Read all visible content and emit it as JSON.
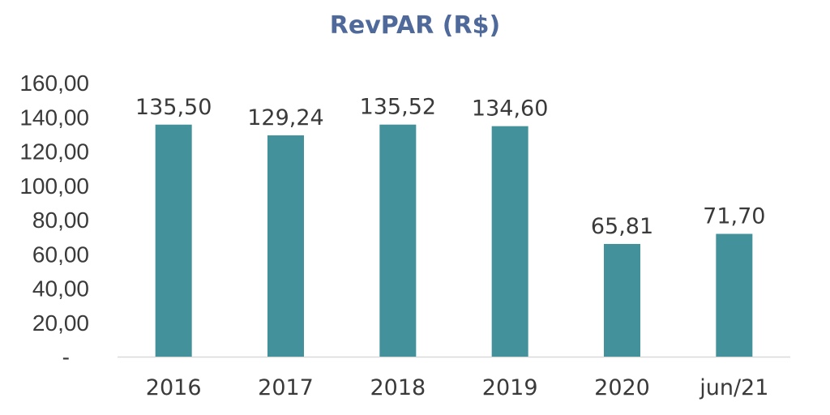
{
  "chart_data": {
    "type": "bar",
    "title": "RevPAR (R$)",
    "categories": [
      "2016",
      "2017",
      "2018",
      "2019",
      "2020",
      "jun/21"
    ],
    "values": [
      135.5,
      129.24,
      135.52,
      134.6,
      65.81,
      71.7
    ],
    "data_labels": [
      "135,50",
      "129,24",
      "135,52",
      "134,60",
      "65,81",
      "71,70"
    ],
    "ylim": [
      0,
      160
    ],
    "yticks": [
      0,
      20,
      40,
      60,
      80,
      100,
      120,
      140,
      160
    ],
    "ytick_labels": [
      "-",
      "20,00",
      "40,00",
      "60,00",
      "80,00",
      "100,00",
      "120,00",
      "140,00",
      "160,00"
    ],
    "xlabel": "",
    "ylabel": "",
    "grid": false,
    "legend": "none",
    "colors": {
      "bar": "#43919A",
      "title": "#4F6A9A",
      "text": "#3A3A3A",
      "axis": "#D9D9D9"
    }
  }
}
